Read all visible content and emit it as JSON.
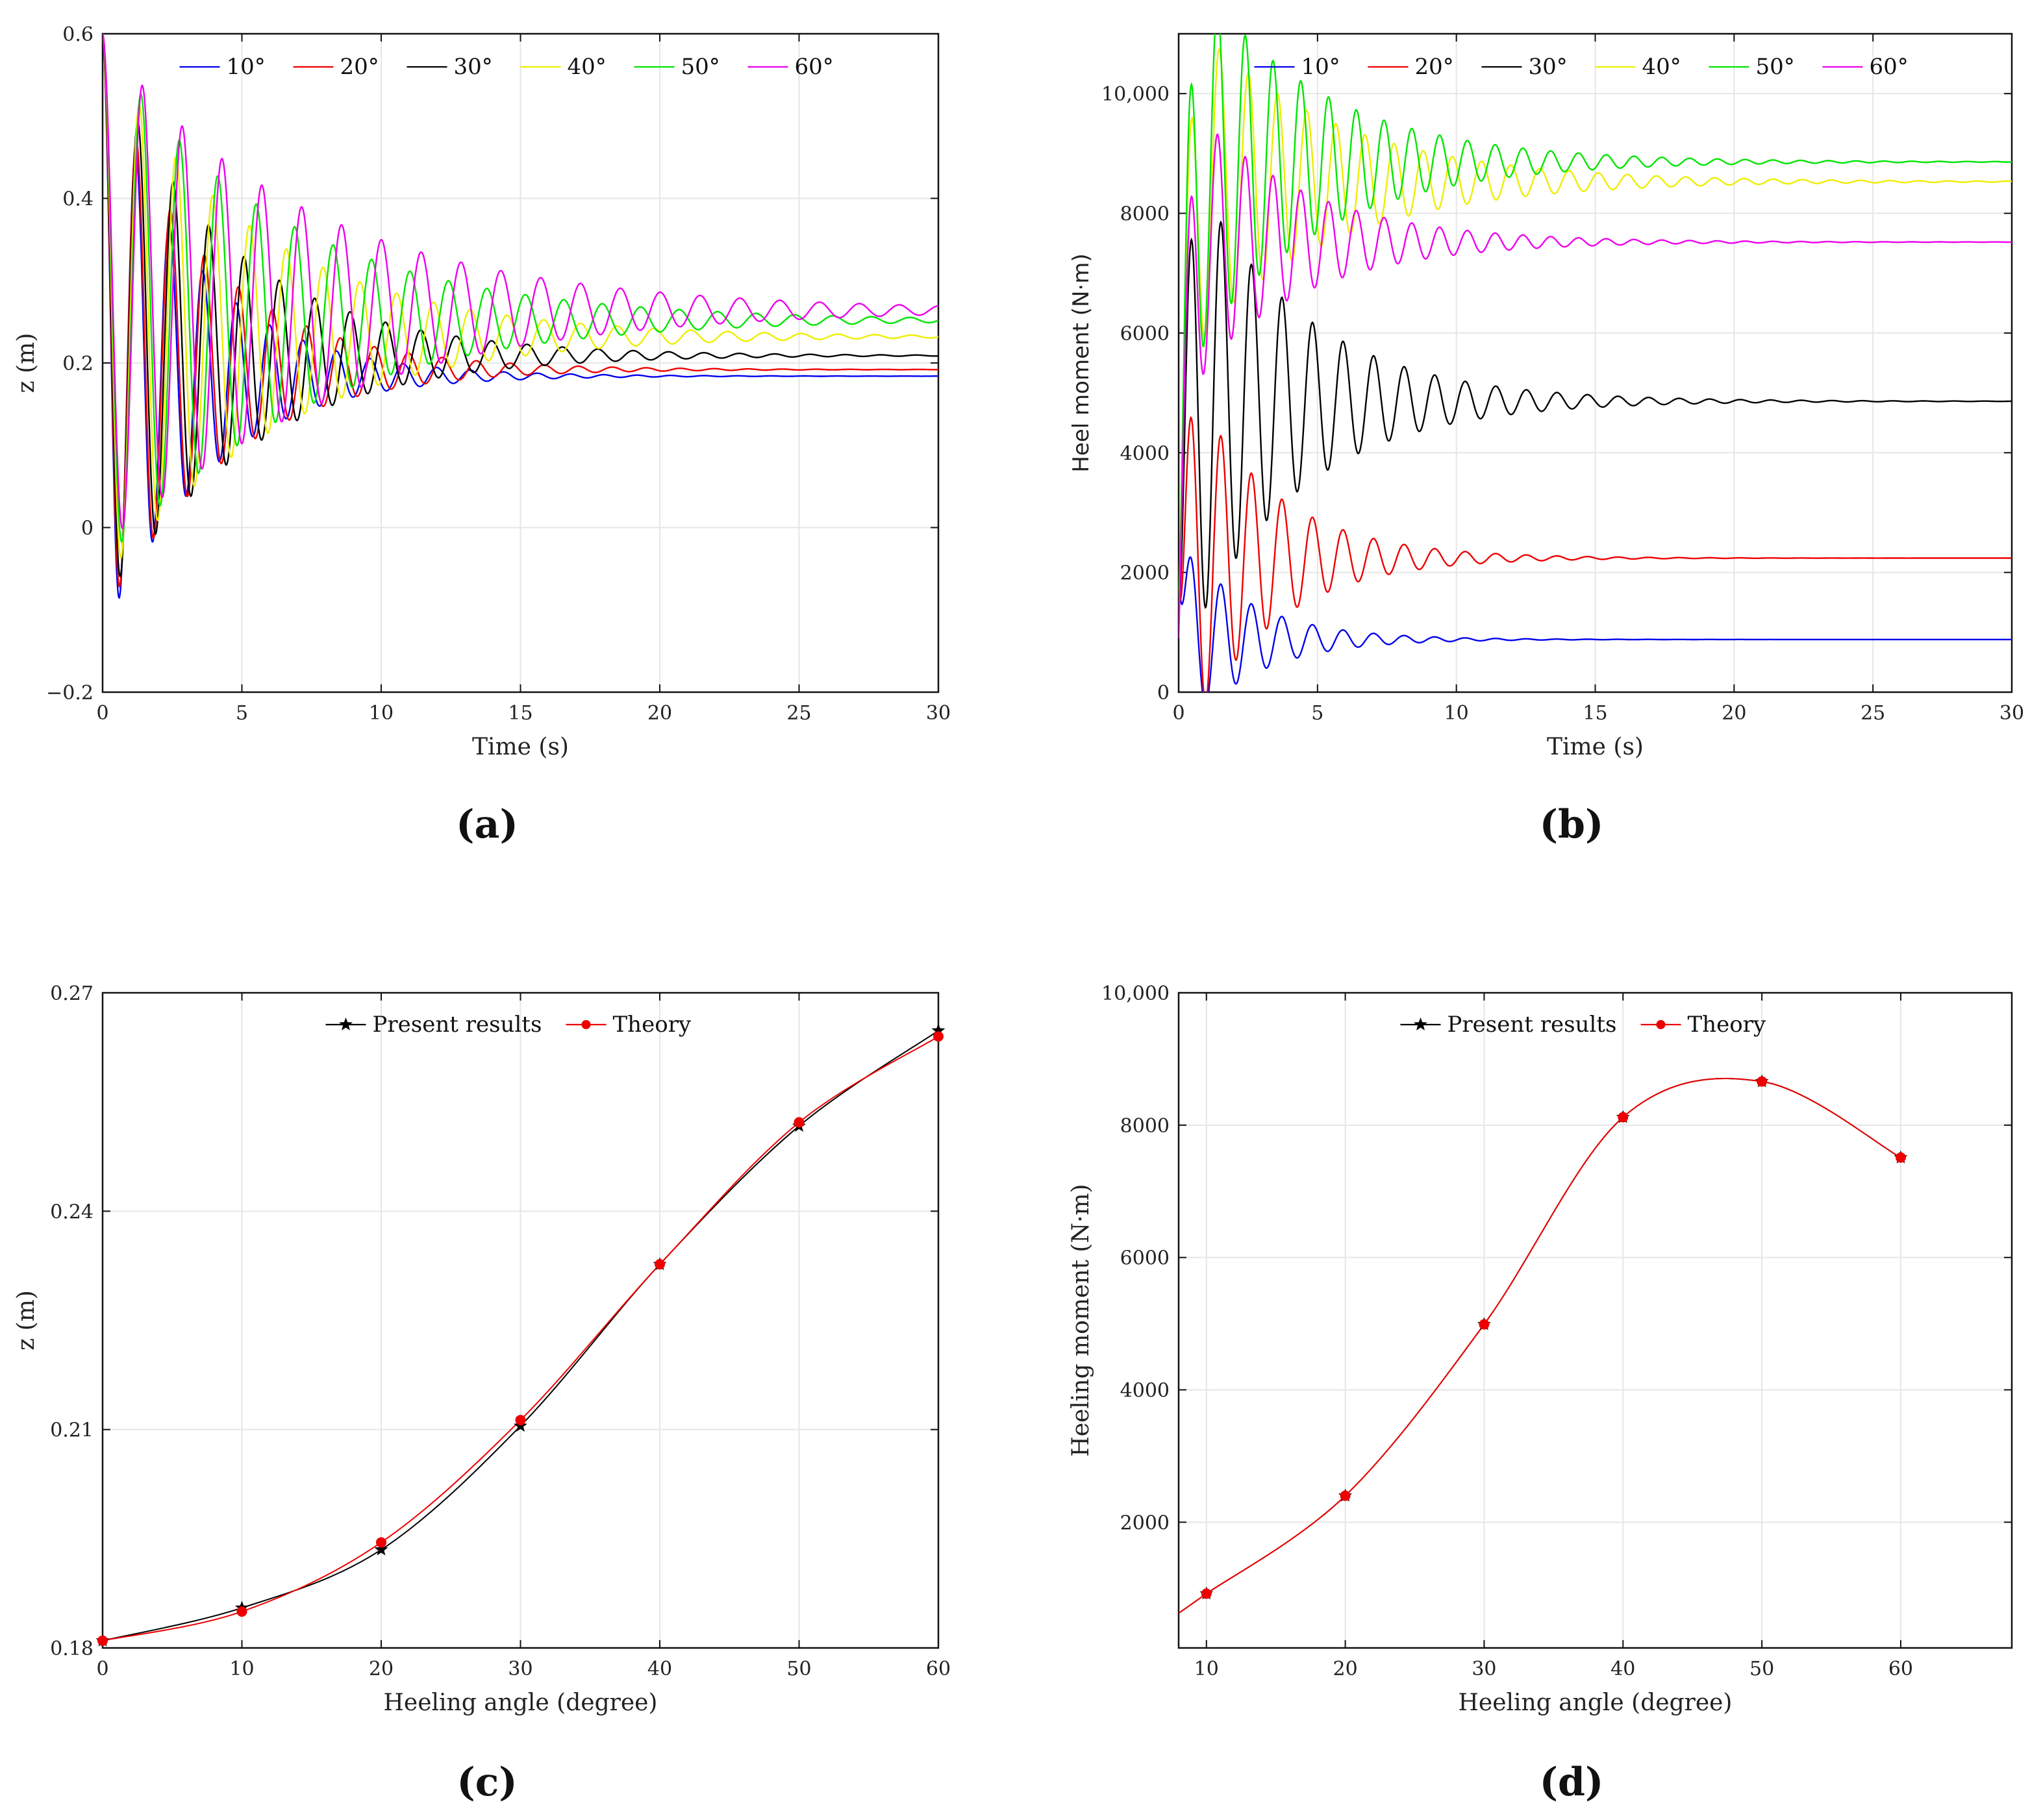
{
  "colors": {
    "blue": "#0000ee",
    "red": "#ee0000",
    "black": "#000000",
    "yellow": "#eeee00",
    "green": "#00e600",
    "magenta": "#ee00ee"
  },
  "chart_data": [
    {
      "panel": "(a)",
      "type": "line",
      "xlabel": "Time (s)",
      "ylabel": "z (m)",
      "xlim": [
        0,
        30
      ],
      "ylim": [
        -0.2,
        0.6
      ],
      "xticks": [
        "0",
        "5",
        "10",
        "15",
        "20",
        "25",
        "30"
      ],
      "yticks": [
        "−0.2",
        "0",
        "0.2",
        "0.4",
        "0.6"
      ],
      "legend": [
        "10°",
        "20°",
        "30°",
        "40°",
        "50°",
        "60°"
      ],
      "series": [
        {
          "name": "10°",
          "color": "blue",
          "start": 0.6,
          "final": 0.184,
          "trough": -0.12,
          "period": 1.2,
          "decay": 3.2,
          "growth": 0.02
        },
        {
          "name": "20°",
          "color": "red",
          "start": 0.6,
          "final": 0.192,
          "trough": -0.1,
          "period": 1.22,
          "decay": 3.6,
          "growth": 0.02
        },
        {
          "name": "30°",
          "color": "black",
          "start": 0.6,
          "final": 0.209,
          "trough": -0.085,
          "period": 1.27,
          "decay": 4.3,
          "growth": 0.025
        },
        {
          "name": "40°",
          "color": "yellow",
          "start": 0.6,
          "final": 0.232,
          "trough": -0.06,
          "period": 1.32,
          "decay": 5.0,
          "growth": 0.03
        },
        {
          "name": "50°",
          "color": "green",
          "start": 0.6,
          "final": 0.252,
          "trough": -0.04,
          "period": 1.38,
          "decay": 5.6,
          "growth": 0.03
        },
        {
          "name": "60°",
          "color": "magenta",
          "start": 0.6,
          "final": 0.264,
          "trough": -0.02,
          "period": 1.43,
          "decay": 6.3,
          "growth": 0.035
        }
      ]
    },
    {
      "panel": "(b)",
      "type": "line",
      "xlabel": "Time (s)",
      "ylabel": "Heel moment (N·m)",
      "xlim": [
        0,
        30
      ],
      "ylim": [
        0,
        11000
      ],
      "xticks": [
        "0",
        "5",
        "10",
        "15",
        "20",
        "25",
        "30"
      ],
      "yticks": [
        "0",
        "2000",
        "4000",
        "6000",
        "8000",
        "10,000"
      ],
      "legend": [
        "10°",
        "20°",
        "30°",
        "40°",
        "50°",
        "60°"
      ],
      "series": [
        {
          "name": "10°",
          "color": "blue",
          "start": 2000,
          "final": 880,
          "amp": 1700,
          "period": 1.1,
          "decay": 2.5
        },
        {
          "name": "20°",
          "color": "red",
          "start": 1800,
          "final": 2240,
          "amp": 3400,
          "period": 1.1,
          "decay": 3.0
        },
        {
          "name": "30°",
          "color": "black",
          "start": 1500,
          "final": 4860,
          "amp": 4400,
          "period": 1.1,
          "decay": 4.0
        },
        {
          "name": "40°",
          "color": "yellow",
          "start": 1200,
          "final": 8530,
          "amp": 3000,
          "period": 1.05,
          "decay": 5.0
        },
        {
          "name": "50°",
          "color": "green",
          "start": 1000,
          "final": 8860,
          "amp": 3600,
          "period": 1.0,
          "decay": 4.5
        },
        {
          "name": "60°",
          "color": "magenta",
          "start": 900,
          "final": 7520,
          "amp": 2600,
          "period": 1.0,
          "decay": 4.0
        }
      ]
    },
    {
      "panel": "(c)",
      "type": "line",
      "xlabel": "Heeling angle (degree)",
      "ylabel": "z (m)",
      "xlim": [
        0,
        60
      ],
      "ylim": [
        0.18,
        0.27
      ],
      "xticks": [
        "0",
        "10",
        "20",
        "30",
        "40",
        "50",
        "60"
      ],
      "yticks": [
        "0.18",
        "0.21",
        "0.24",
        "0.27"
      ],
      "legend": [
        "Present results",
        "Theory"
      ],
      "x": [
        0,
        10,
        20,
        30,
        40,
        50,
        60
      ],
      "series": [
        {
          "name": "Present results",
          "color": "black",
          "marker": "star",
          "values": [
            0.181,
            0.1855,
            0.1935,
            0.2105,
            0.2327,
            0.2517,
            0.2648
          ]
        },
        {
          "name": "Theory",
          "color": "red",
          "marker": "circle",
          "values": [
            0.181,
            0.185,
            0.1945,
            0.2113,
            0.2327,
            0.2522,
            0.264
          ]
        }
      ]
    },
    {
      "panel": "(d)",
      "type": "line",
      "xlabel": "Heeling angle (degree)",
      "ylabel": "Heeling moment (N·m)",
      "xlim": [
        8,
        68
      ],
      "ylim": [
        100,
        10000
      ],
      "xticks": [
        "10",
        "20",
        "30",
        "40",
        "50",
        "60"
      ],
      "yticks": [
        "2000",
        "4000",
        "6000",
        "8000",
        "10,000"
      ],
      "legend": [
        "Present results",
        "Theory"
      ],
      "x": [
        10,
        20,
        30,
        40,
        50,
        60
      ],
      "series": [
        {
          "name": "Present results",
          "color": "black",
          "marker": "star",
          "values": [
            920,
            2400,
            4990,
            8120,
            8660,
            7510
          ]
        },
        {
          "name": "Theory",
          "color": "red",
          "marker": "circle",
          "values": [
            920,
            2400,
            4990,
            8120,
            8660,
            7510
          ]
        }
      ]
    }
  ]
}
